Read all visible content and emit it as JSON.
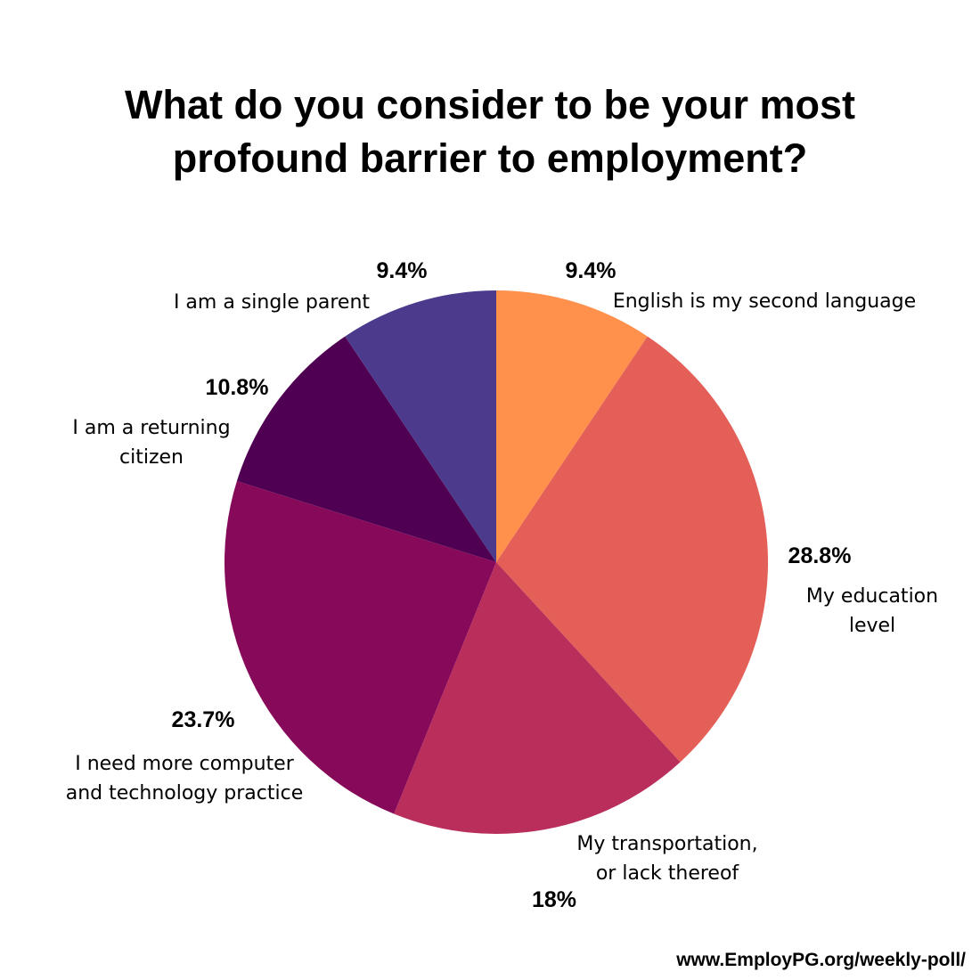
{
  "chart_data": {
    "type": "pie",
    "title_lines": [
      "What do you consider to be your most",
      "profound barrier to employment?"
    ],
    "start_angle_deg": 0,
    "direction": "clockwise",
    "slices": [
      {
        "value": 9.4,
        "value_label": "9.4%",
        "label_lines": [
          "English is my second language"
        ],
        "color": "#FF914D"
      },
      {
        "value": 28.8,
        "value_label": "28.8%",
        "label_lines": [
          "My education",
          "level"
        ],
        "color": "#E35F57"
      },
      {
        "value": 18,
        "value_label": "18%",
        "label_lines": [
          "My transportation,",
          "or lack thereof"
        ],
        "color": "#BA2E5C"
      },
      {
        "value": 23.7,
        "value_label": "23.7%",
        "label_lines": [
          "I need more computer",
          "and technology practice"
        ],
        "color": "#870A5A"
      },
      {
        "value": 10.8,
        "value_label": "10.8%",
        "label_lines": [
          "I am a returning",
          "citizen"
        ],
        "color": "#500052"
      },
      {
        "value": 9.4,
        "value_label": "9.4%",
        "label_lines": [
          "I am a single parent"
        ],
        "color": "#4C3B8C"
      }
    ]
  },
  "footer": {
    "url": "www.EmployPG.org/weekly-poll/"
  }
}
